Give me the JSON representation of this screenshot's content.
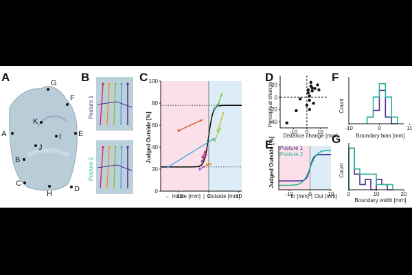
{
  "panels": {
    "A": {
      "label": "A",
      "points": [
        "G",
        "F",
        "K",
        "E",
        "A",
        "I",
        "J",
        "B",
        "C",
        "H",
        "D"
      ]
    },
    "B": {
      "label": "B",
      "posture1": "Posture 1",
      "posture2": "Posture 2"
    },
    "C": {
      "label": "C",
      "ylabel": "Judged Outside [%]",
      "xlabel_in": "← Inside [mm]",
      "xlabel_sep": "|",
      "xlabel_out": "Outside [mm]",
      "yticks": [
        "0",
        "20",
        "40",
        "60",
        "80",
        "100"
      ],
      "xticks": [
        "-10",
        "0",
        "10"
      ]
    },
    "D": {
      "label": "D",
      "ylabel": "Perceptual change",
      "xlabel": "Distance change [mm]",
      "yticks": [
        "20",
        "0",
        "-20",
        "-40"
      ],
      "xticks": [
        "-10",
        "0",
        "10"
      ]
    },
    "E": {
      "label": "E",
      "ylabel": "Judged Outside [%]",
      "legend1": "Posture 1",
      "legend2": "Posture 2",
      "xlabel_in": "In [mm]",
      "xlabel_sep": "|",
      "xlabel_out": "Out [mm]",
      "xticks": [
        "-10",
        "0",
        "10"
      ]
    },
    "F": {
      "label": "F",
      "ylabel": "Count",
      "xlabel": "Boundary bias [mm]",
      "xticks": [
        "-10",
        "0",
        "10"
      ]
    },
    "G": {
      "label": "G",
      "ylabel": "Count",
      "xlabel": "Boundary width [mm]",
      "xticks": [
        "0",
        "10",
        "20"
      ]
    }
  },
  "colors": {
    "posture1": "#4b2d8f",
    "posture2": "#2bb39b",
    "inside_region": "#fbe0ea",
    "outside_region": "#dcedf7",
    "inside_text": "#d11d70",
    "outside_text": "#2b5ca8"
  },
  "chart_data": [
    {
      "panel": "C",
      "type": "line",
      "xlim": [
        -16,
        11
      ],
      "ylim": [
        0,
        100
      ],
      "curve": "sigmoid",
      "dotted_levels": [
        22,
        78
      ],
      "series": [
        {
          "color": "#4aa7e0",
          "x": [
            -13.5,
            2
          ],
          "y": [
            22,
            48
          ]
        },
        {
          "color": "#d9581f",
          "x": [
            -10,
            -2
          ],
          "y": [
            55,
            65
          ]
        },
        {
          "color": "#7dc242",
          "x": [
            3,
            4.5
          ],
          "y": [
            78,
            89
          ]
        },
        {
          "color": "#3aa870",
          "x": [
            2,
            3.5
          ],
          "y": [
            75,
            80
          ]
        },
        {
          "color": "#cbbf2b",
          "x": [
            3,
            5
          ],
          "y": [
            55,
            72
          ]
        },
        {
          "color": "#9bcf52",
          "x": [
            2,
            4
          ],
          "y": [
            46,
            58
          ]
        },
        {
          "color": "#d9295b",
          "x": [
            -2,
            -1
          ],
          "y": [
            31,
            37
          ]
        },
        {
          "color": "#8a3fb0",
          "x": [
            -1,
            -2.5
          ],
          "y": [
            33,
            26
          ]
        },
        {
          "color": "#b05ab8",
          "x": [
            -3,
            -1
          ],
          "y": [
            20,
            23
          ]
        },
        {
          "color": "#e8961c",
          "x": [
            -0.5,
            1
          ],
          "y": [
            24,
            25
          ]
        }
      ]
    },
    {
      "panel": "D",
      "type": "scatter",
      "xlim": [
        -20,
        16
      ],
      "ylim": [
        -50,
        35
      ],
      "x": [
        -15,
        -8,
        -5,
        0,
        1,
        1,
        2,
        2,
        3,
        3,
        4,
        4,
        5,
        6,
        8,
        9,
        2
      ],
      "y": [
        -42,
        -22,
        -3,
        -13,
        7,
        12,
        -5,
        2,
        18,
        24,
        10,
        15,
        -10,
        14,
        20,
        12,
        -20
      ]
    },
    {
      "panel": "E",
      "type": "line",
      "xlim": [
        -15,
        10
      ],
      "ylim": [
        0,
        100
      ],
      "series": [
        {
          "name": "Posture 1",
          "curve": "sigmoid",
          "low": 20,
          "high": 80
        },
        {
          "name": "Posture 2",
          "curve": "sigmoid",
          "low": 10,
          "high": 90
        }
      ]
    },
    {
      "panel": "F",
      "type": "bar",
      "xlim": [
        -10,
        8
      ],
      "bin_edges": [
        -4,
        -2,
        0,
        2,
        4,
        6
      ],
      "series": [
        {
          "name": "Posture 1",
          "values": [
            1,
            2,
            5,
            1,
            0
          ]
        },
        {
          "name": "Posture 2",
          "values": [
            1,
            4,
            6,
            4,
            1
          ]
        }
      ]
    },
    {
      "panel": "G",
      "type": "bar",
      "xlim": [
        0,
        20
      ],
      "bin_edges": [
        0,
        2,
        4,
        6,
        8,
        10,
        12,
        14,
        16
      ],
      "series": [
        {
          "name": "Posture 1",
          "values": [
            8,
            3,
            1,
            2,
            0,
            2,
            1,
            0
          ]
        },
        {
          "name": "Posture 2",
          "values": [
            8,
            4,
            3,
            3,
            3,
            1,
            1,
            1
          ]
        }
      ]
    }
  ]
}
